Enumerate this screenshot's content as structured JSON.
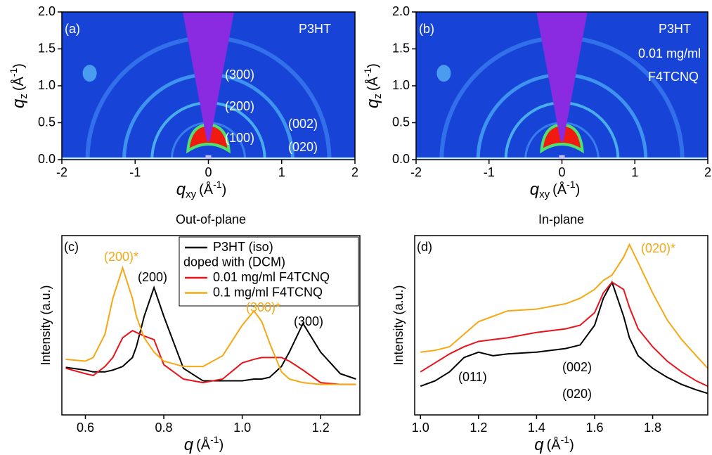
{
  "chart_data": [
    {
      "type": "image",
      "label": "(a)",
      "xlabel": {
        "symbol": "q",
        "subscript": "xy",
        "unit": "(Å",
        "superscript": "-1",
        "close": ")"
      },
      "ylabel": {
        "symbol": "q",
        "subscript": "z",
        "unit": "(Å",
        "superscript": "-1",
        "close": ")"
      },
      "xlim": [
        -2,
        2
      ],
      "xticks": [
        -2,
        -1,
        0,
        1,
        2
      ],
      "ylim": [
        0,
        2
      ],
      "yticks": [
        {
          "value": 0,
          "label": "0.0"
        },
        {
          "value": 0.5,
          "label": "0.5"
        },
        {
          "value": 1,
          "label": "1.0"
        },
        {
          "value": 1.5,
          "label": "1.5"
        },
        {
          "value": 2,
          "label": "2.0"
        }
      ],
      "annotations": [
        {
          "text": "P3HT",
          "color": "#ffffff"
        },
        {
          "text": "(300)",
          "color": "#ffffff"
        },
        {
          "text": "(200)",
          "color": "#ffffff"
        },
        {
          "text": "(100)",
          "color": "#ffffff"
        },
        {
          "text": "(002)",
          "color": "#ffffff"
        },
        {
          "text": "(020)",
          "color": "#ffffff"
        }
      ]
    },
    {
      "type": "image",
      "label": "(b)",
      "xlabel": {
        "symbol": "q",
        "subscript": "xy",
        "unit": "(Å",
        "superscript": "-1",
        "close": ")"
      },
      "ylabel": {
        "symbol": "q",
        "subscript": "z",
        "unit": "(Å",
        "superscript": "-1",
        "close": ")"
      },
      "xlim": [
        -2,
        2
      ],
      "xticks": [
        -2,
        -1,
        0,
        1,
        2
      ],
      "ylim": [
        0,
        2
      ],
      "yticks": [
        {
          "value": 0,
          "label": "0.0"
        },
        {
          "value": 0.5,
          "label": "0.5"
        },
        {
          "value": 1,
          "label": "1.0"
        },
        {
          "value": 1.5,
          "label": "1.5"
        },
        {
          "value": 2,
          "label": "2.0"
        }
      ],
      "annotations": [
        {
          "text": "P3HT",
          "color": "#ffffff"
        },
        {
          "text": "0.01 mg/ml",
          "color": "#ffffff"
        },
        {
          "text": "F4TCNQ",
          "color": "#ffffff"
        }
      ]
    },
    {
      "type": "line",
      "title": "Out-of-plane",
      "label": "(c)",
      "ylabel": "Intensity (a.u.)",
      "xlabel": {
        "symbol": "q",
        "unit": "(Å",
        "superscript": "-1",
        "close": ")"
      },
      "legend": "upper right",
      "legend_note": "doped with (DCM)",
      "xlim": [
        0.54,
        1.3
      ],
      "xticks": [
        0.6,
        0.8,
        {
          "value": 1,
          "label": "1.0"
        },
        1.2
      ],
      "ylim": [
        0,
        10
      ],
      "x": [
        0.55,
        0.6,
        0.62,
        0.65,
        0.67,
        0.695,
        0.72,
        0.73,
        0.75,
        0.775,
        0.8,
        0.85,
        0.9,
        0.95,
        1.0,
        1.03,
        1.05,
        1.07,
        1.1,
        1.12,
        1.155,
        1.2,
        1.25,
        1.29
      ],
      "series": [
        {
          "name": "P3HT (iso)",
          "color": "#000000",
          "values": [
            2.65,
            2.5,
            2.4,
            2.4,
            2.5,
            2.7,
            3.2,
            3.8,
            5.5,
            7.1,
            5.5,
            2.6,
            1.9,
            1.9,
            1.9,
            2.0,
            2.0,
            2.1,
            2.7,
            3.5,
            5.1,
            3.5,
            2.3,
            2.0
          ]
        },
        {
          "name": "0.01 mg/ml F4TCNQ",
          "color": "#e8141c",
          "values": [
            2.6,
            2.3,
            2.2,
            2.7,
            3.2,
            4.3,
            4.7,
            4.6,
            4.4,
            4.2,
            2.8,
            2.0,
            1.8,
            2.0,
            2.9,
            3.1,
            3.2,
            3.2,
            3.2,
            3.0,
            2.5,
            1.8,
            1.7,
            1.7
          ]
        },
        {
          "name": "0.1 mg/ml F4TCNQ",
          "color": "#f5a814",
          "values": [
            3.1,
            3.0,
            3.2,
            4.5,
            6.5,
            8.2,
            6.5,
            5.5,
            4.3,
            3.5,
            3.0,
            2.7,
            2.7,
            3.3,
            5.0,
            5.8,
            5.2,
            4.0,
            2.4,
            2.0,
            1.8,
            1.7,
            1.7,
            1.7
          ]
        }
      ],
      "annotations": [
        {
          "text": "(200)*",
          "color": "#f5a814"
        },
        {
          "text": "(200)",
          "color": "#000000"
        },
        {
          "text": "(300)*",
          "color": "#f5a814"
        },
        {
          "text": "(300)",
          "color": "#000000"
        }
      ]
    },
    {
      "type": "line",
      "title": "In-plane",
      "label": "(d)",
      "ylabel": "Intensity (a.u.)",
      "xlabel": {
        "symbol": "q",
        "unit": "(Å",
        "superscript": "-1",
        "close": ")"
      },
      "xlim": [
        0.98,
        1.99
      ],
      "xticks": [
        {
          "value": 1,
          "label": "1.0"
        },
        1.2,
        1.4,
        1.6,
        1.8
      ],
      "ylim": [
        0,
        10
      ],
      "x": [
        1.0,
        1.05,
        1.1,
        1.15,
        1.2,
        1.25,
        1.3,
        1.4,
        1.5,
        1.55,
        1.6,
        1.63,
        1.66,
        1.7,
        1.72,
        1.75,
        1.8,
        1.85,
        1.9,
        1.95,
        1.99
      ],
      "series": [
        {
          "name": "P3HT (iso)",
          "color": "#000000",
          "values": [
            1.6,
            1.9,
            2.4,
            3.2,
            3.5,
            3.3,
            3.4,
            3.5,
            3.7,
            3.9,
            5.0,
            6.5,
            7.4,
            5.5,
            4.3,
            3.3,
            2.6,
            2.1,
            1.7,
            1.4,
            1.2
          ]
        },
        {
          "name": "0.01 mg/ml F4TCNQ",
          "color": "#e8141c",
          "values": [
            2.4,
            2.9,
            3.4,
            3.8,
            4.1,
            4.2,
            4.3,
            4.6,
            4.8,
            5.0,
            5.7,
            6.8,
            7.4,
            7.0,
            6.0,
            4.8,
            3.8,
            3.0,
            2.4,
            1.9,
            1.6
          ]
        },
        {
          "name": "0.1 mg/ml F4TCNQ",
          "color": "#f5a814",
          "values": [
            3.5,
            3.6,
            3.8,
            4.5,
            5.2,
            5.5,
            5.8,
            5.9,
            6.2,
            6.5,
            7.0,
            7.5,
            7.8,
            8.8,
            9.5,
            8.5,
            6.8,
            5.3,
            4.2,
            3.3,
            2.6
          ]
        }
      ],
      "annotations": [
        {
          "text": "(020)*",
          "color": "#f5a814"
        },
        {
          "text": "(002)",
          "color": "#000000"
        },
        {
          "text": "(020)",
          "color": "#000000"
        },
        {
          "text": "(011)",
          "color": "#000000"
        }
      ]
    }
  ]
}
